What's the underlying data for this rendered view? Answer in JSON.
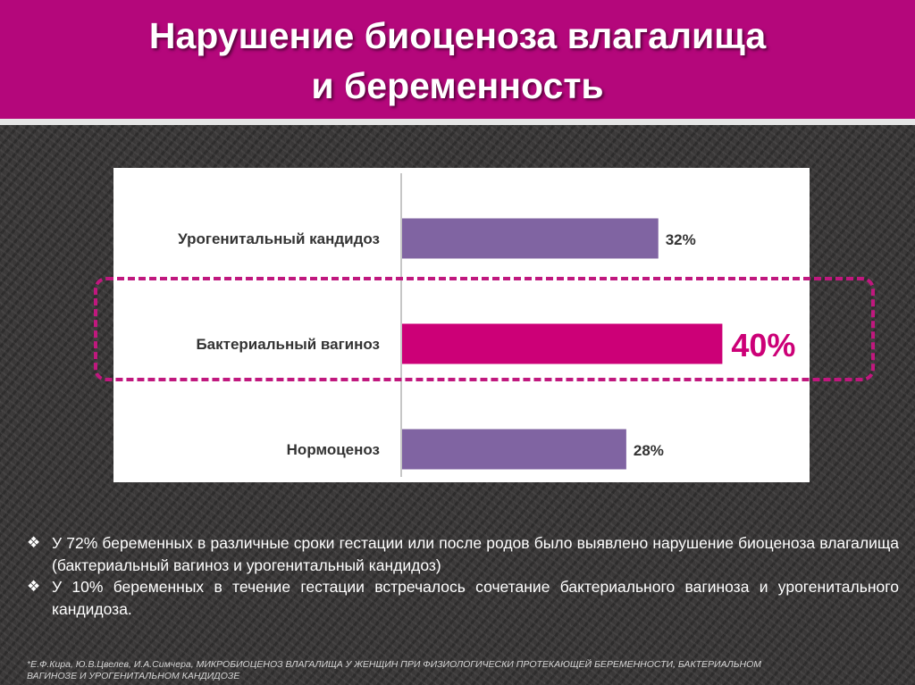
{
  "title": {
    "line1": "Нарушение биоценоза влагалища",
    "line2": "и беременность"
  },
  "colors": {
    "title_band": "#b4077b",
    "bar_default": "#8064a2",
    "bar_highlight": "#cc0077",
    "highlight_frame": "#c0187e"
  },
  "chart_data": {
    "type": "bar",
    "orientation": "horizontal",
    "categories": [
      "Урогенитальный кандидоз",
      "Бактериальный вагиноз",
      "Нормоценоз"
    ],
    "values": [
      32,
      40,
      28
    ],
    "value_labels": [
      "32%",
      "40%",
      "28%"
    ],
    "highlighted_category": "Бактериальный вагиноз",
    "xlim": [
      0,
      50
    ],
    "grid": false,
    "legend": "none",
    "title": "",
    "xlabel": "",
    "ylabel": ""
  },
  "bullets": [
    "У 72% беременных в различные сроки гестации или после родов было выявлено нарушение биоценоза влагалища (бактериальный вагиноз и урогенитальный кандидоз)",
    "У 10% беременных в течение гестации встречалось сочетание бактериального вагиноза и урогенитального кандидоза."
  ],
  "bullet_icon": "diamond-cluster-icon",
  "footnote": "*Е.Ф.Кира, Ю.В.Цвелев, И.А.Симчера, МИКРОБИОЦЕНОЗ ВЛАГАЛИЩА У ЖЕНЩИН ПРИ ФИЗИОЛОГИЧЕСКИ ПРОТЕКАЮЩЕЙ БЕРЕМЕННОСТИ, БАКТЕРИАЛЬНОМ ВАГИНОЗЕ И УРОГЕНИТАЛЬНОМ КАНДИДОЗЕ"
}
